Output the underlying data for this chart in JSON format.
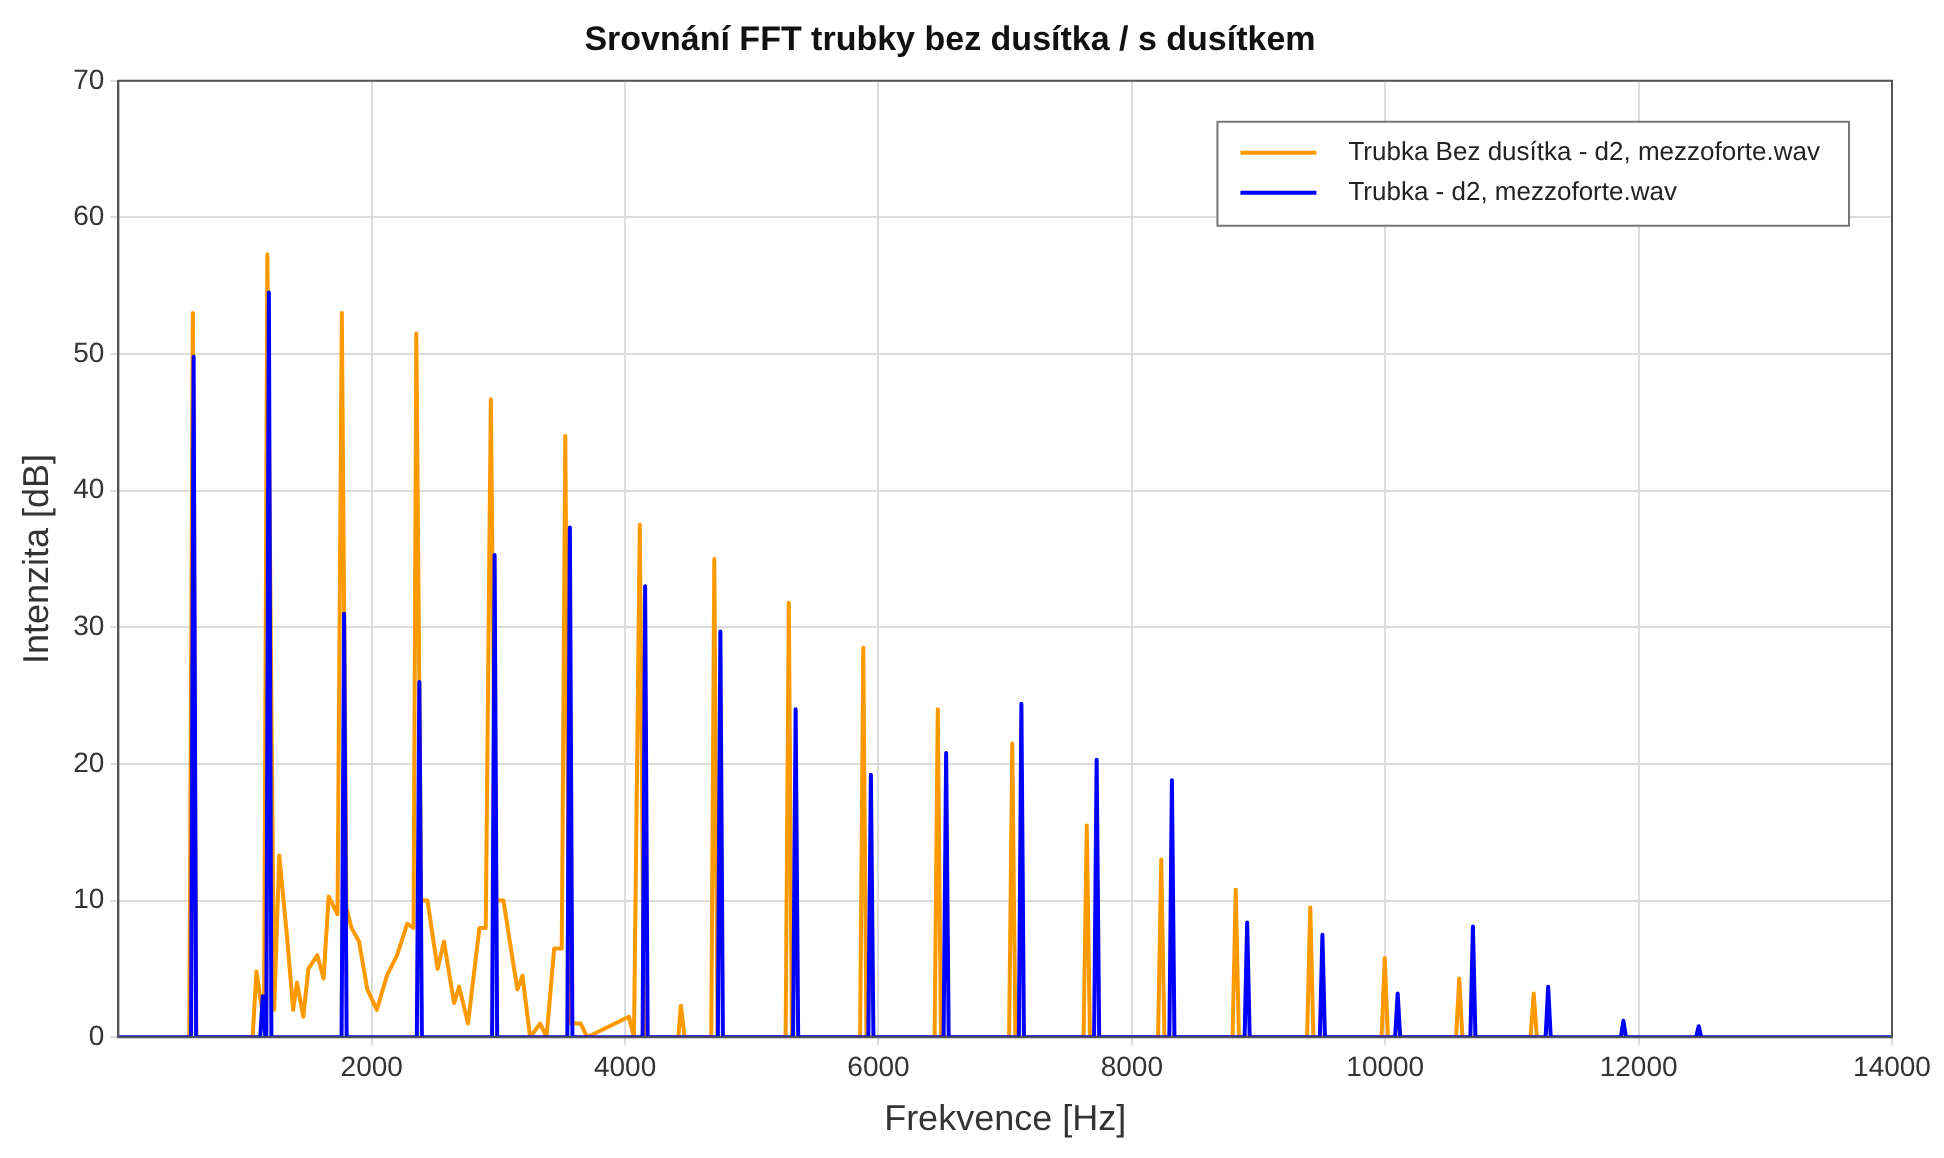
{
  "chart_data": {
    "type": "line",
    "title": "Srovnání FFT trubky bez dusítka / s dusítkem",
    "xlabel": "Frekvence [Hz]",
    "ylabel": "Intenzita [dB]",
    "xlim": [
      0,
      14000
    ],
    "xticks": [
      2000,
      4000,
      6000,
      8000,
      10000,
      12000,
      14000
    ],
    "ylim": [
      0,
      70
    ],
    "yticks": [
      0,
      10,
      20,
      30,
      40,
      50,
      60,
      70
    ],
    "grid": true,
    "legend": "top right",
    "marker": "none",
    "line_style": "solid",
    "series": [
      {
        "name": "Trubka Bez dusítka - d2, mezzoforte.wav",
        "color": "#ff9900",
        "x": [
          560,
          588,
          615,
          1060,
          1090,
          1150,
          1176,
          1230,
          1270,
          1330,
          1380,
          1410,
          1460,
          1500,
          1570,
          1620,
          1660,
          1730,
          1764,
          1800,
          1840,
          1900,
          1965,
          2040,
          2120,
          2200,
          2280,
          2330,
          2352,
          2390,
          2440,
          2520,
          2570,
          2650,
          2690,
          2760,
          2850,
          2900,
          2940,
          2980,
          3040,
          3090,
          3150,
          3190,
          3250,
          3330,
          3380,
          3440,
          3500,
          3528,
          3560,
          3650,
          3700,
          4030,
          4070,
          4116,
          4150,
          4420,
          4440,
          4470,
          4680,
          4704,
          4730,
          5267,
          5292,
          5317,
          5855,
          5880,
          5905,
          6443,
          6468,
          6493,
          7031,
          7056,
          7081,
          7619,
          7644,
          7669,
          8207,
          8232,
          8257,
          8795,
          8820,
          8845,
          9383,
          9408,
          9433,
          9971,
          9996,
          10021,
          10559,
          10584,
          10609,
          11147,
          11172,
          11197
        ],
        "values": [
          0,
          53,
          0,
          0,
          4.8,
          1,
          57.3,
          2,
          13.3,
          7.5,
          2,
          4,
          1.5,
          5,
          6,
          4.3,
          10.3,
          9,
          53,
          9.5,
          8,
          7,
          3.5,
          2,
          4.5,
          6,
          8.3,
          8,
          51.5,
          10,
          10,
          5,
          7,
          2.5,
          3.7,
          1,
          8,
          8,
          46.7,
          10,
          10,
          7,
          3.5,
          4.5,
          0,
          1,
          0,
          6.5,
          6.5,
          44,
          1,
          1,
          0,
          1.5,
          0,
          37.5,
          0,
          0,
          2.3,
          0,
          0,
          35,
          0,
          0,
          31.8,
          0,
          0,
          28.5,
          0,
          0,
          24,
          0,
          0,
          21.5,
          0,
          0,
          15.5,
          0,
          0,
          13,
          0,
          0,
          10.8,
          0,
          0,
          9.5,
          0,
          0,
          5.8,
          0,
          0,
          4.3,
          0,
          0,
          3.2,
          0
        ]
      },
      {
        "name": "Trubka - d2, mezzoforte.wav",
        "color": "#0000ff",
        "x": [
          0,
          574,
          594,
          614,
          1120,
          1140,
          1160,
          1168,
          1188,
          1208,
          1762,
          1782,
          1802,
          2356,
          2376,
          2396,
          2950,
          2970,
          2990,
          3544,
          3564,
          3584,
          4138,
          4158,
          4178,
          4732,
          4752,
          4772,
          5326,
          5346,
          5366,
          5920,
          5940,
          5960,
          6514,
          6534,
          6554,
          7108,
          7128,
          7148,
          7702,
          7722,
          7742,
          8296,
          8316,
          8336,
          8890,
          8910,
          8930,
          9484,
          9504,
          9524,
          10078,
          10098,
          10118,
          10672,
          10692,
          10712,
          11266,
          11286,
          11306,
          11860,
          11880,
          11900,
          12454,
          12474,
          12494,
          14000
        ],
        "values": [
          0,
          0,
          49.8,
          0,
          0,
          3,
          0,
          0,
          54.5,
          0,
          0,
          31,
          0,
          0,
          26,
          0,
          0,
          35.3,
          0,
          0,
          37.3,
          0,
          0,
          33,
          0,
          0,
          29.7,
          0,
          0,
          24,
          0,
          0,
          19.2,
          0,
          0,
          20.8,
          0,
          0,
          24.4,
          0,
          0,
          20.3,
          0,
          0,
          18.8,
          0,
          0,
          8.4,
          0,
          0,
          7.5,
          0,
          0,
          3.2,
          0,
          0,
          8.1,
          0,
          0,
          3.7,
          0,
          0,
          1.2,
          0,
          0,
          0.8,
          0,
          0
        ]
      }
    ]
  }
}
